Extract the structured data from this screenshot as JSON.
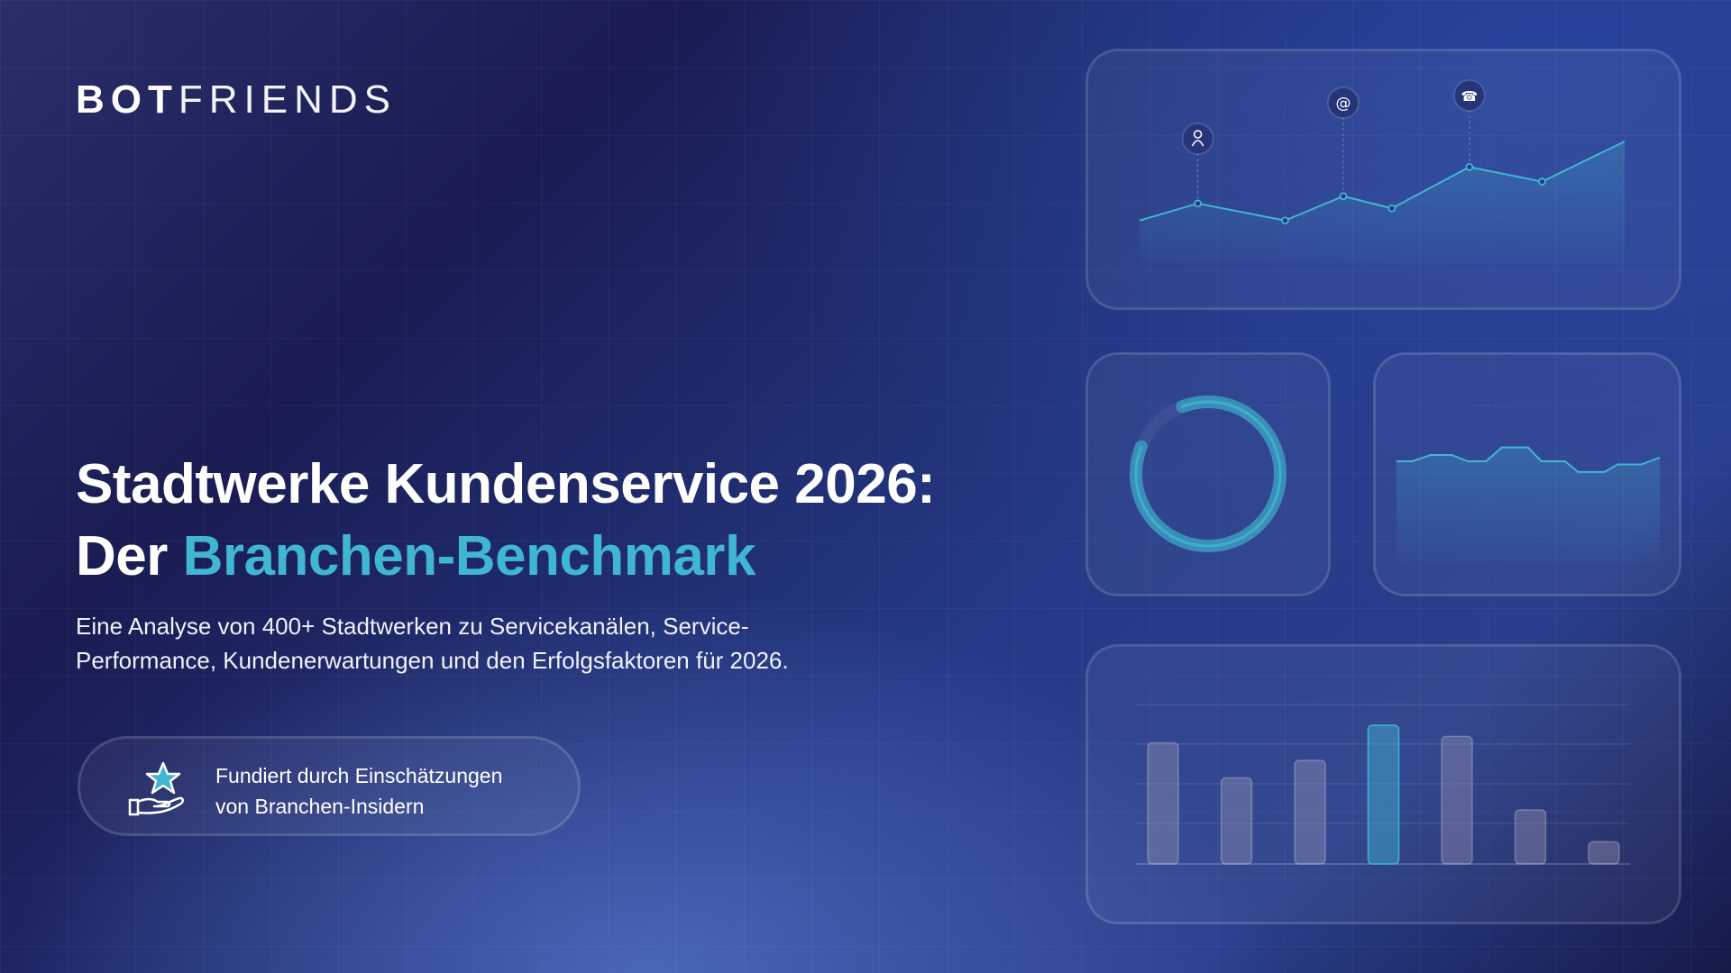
{
  "brand": {
    "bold": "BOT",
    "light": "FRIENDS"
  },
  "headline": {
    "line1": "Stadtwerke Kundenservice 2026:",
    "line2_prefix": "Der ",
    "line2_highlight": "Branchen-Benchmark"
  },
  "subtitle": {
    "line1": "Eine Analyse von 400+ Stadtwerken zu Servicekanälen, Service-",
    "line2": "Performance, Kundenerwartungen und den Erfolgsfaktoren für 2026."
  },
  "badge": {
    "icon": "hand-star-icon",
    "line1": "Fundiert durch Einschätzungen",
    "line2": "von Branchen-Insidern"
  },
  "colors": {
    "accent": "#41b6d3",
    "bar": "#5a5f86",
    "background": "#1b1f52"
  },
  "chart_data": [
    {
      "type": "line",
      "x": [
        0,
        12,
        30,
        42,
        52,
        68,
        83,
        100
      ],
      "values": [
        35,
        49,
        35,
        55,
        45,
        79,
        67,
        100
      ],
      "markers": [
        {
          "index": 1,
          "icon": "user-icon"
        },
        {
          "index": 3,
          "icon": "at-sign-icon"
        },
        {
          "index": 5,
          "icon": "phone-icon"
        }
      ]
    },
    {
      "type": "donut",
      "progress": 0.87
    },
    {
      "type": "area",
      "x": [
        0,
        6,
        13,
        21,
        27,
        34,
        40,
        50,
        55,
        64,
        69,
        79,
        84,
        93,
        100
      ],
      "values": [
        40,
        40,
        50,
        50,
        40,
        40,
        62,
        62,
        40,
        40,
        23,
        23,
        35,
        35,
        46
      ]
    },
    {
      "type": "bar",
      "values": [
        76,
        54,
        65,
        87,
        80,
        34,
        14
      ],
      "highlight_index": 3
    }
  ]
}
